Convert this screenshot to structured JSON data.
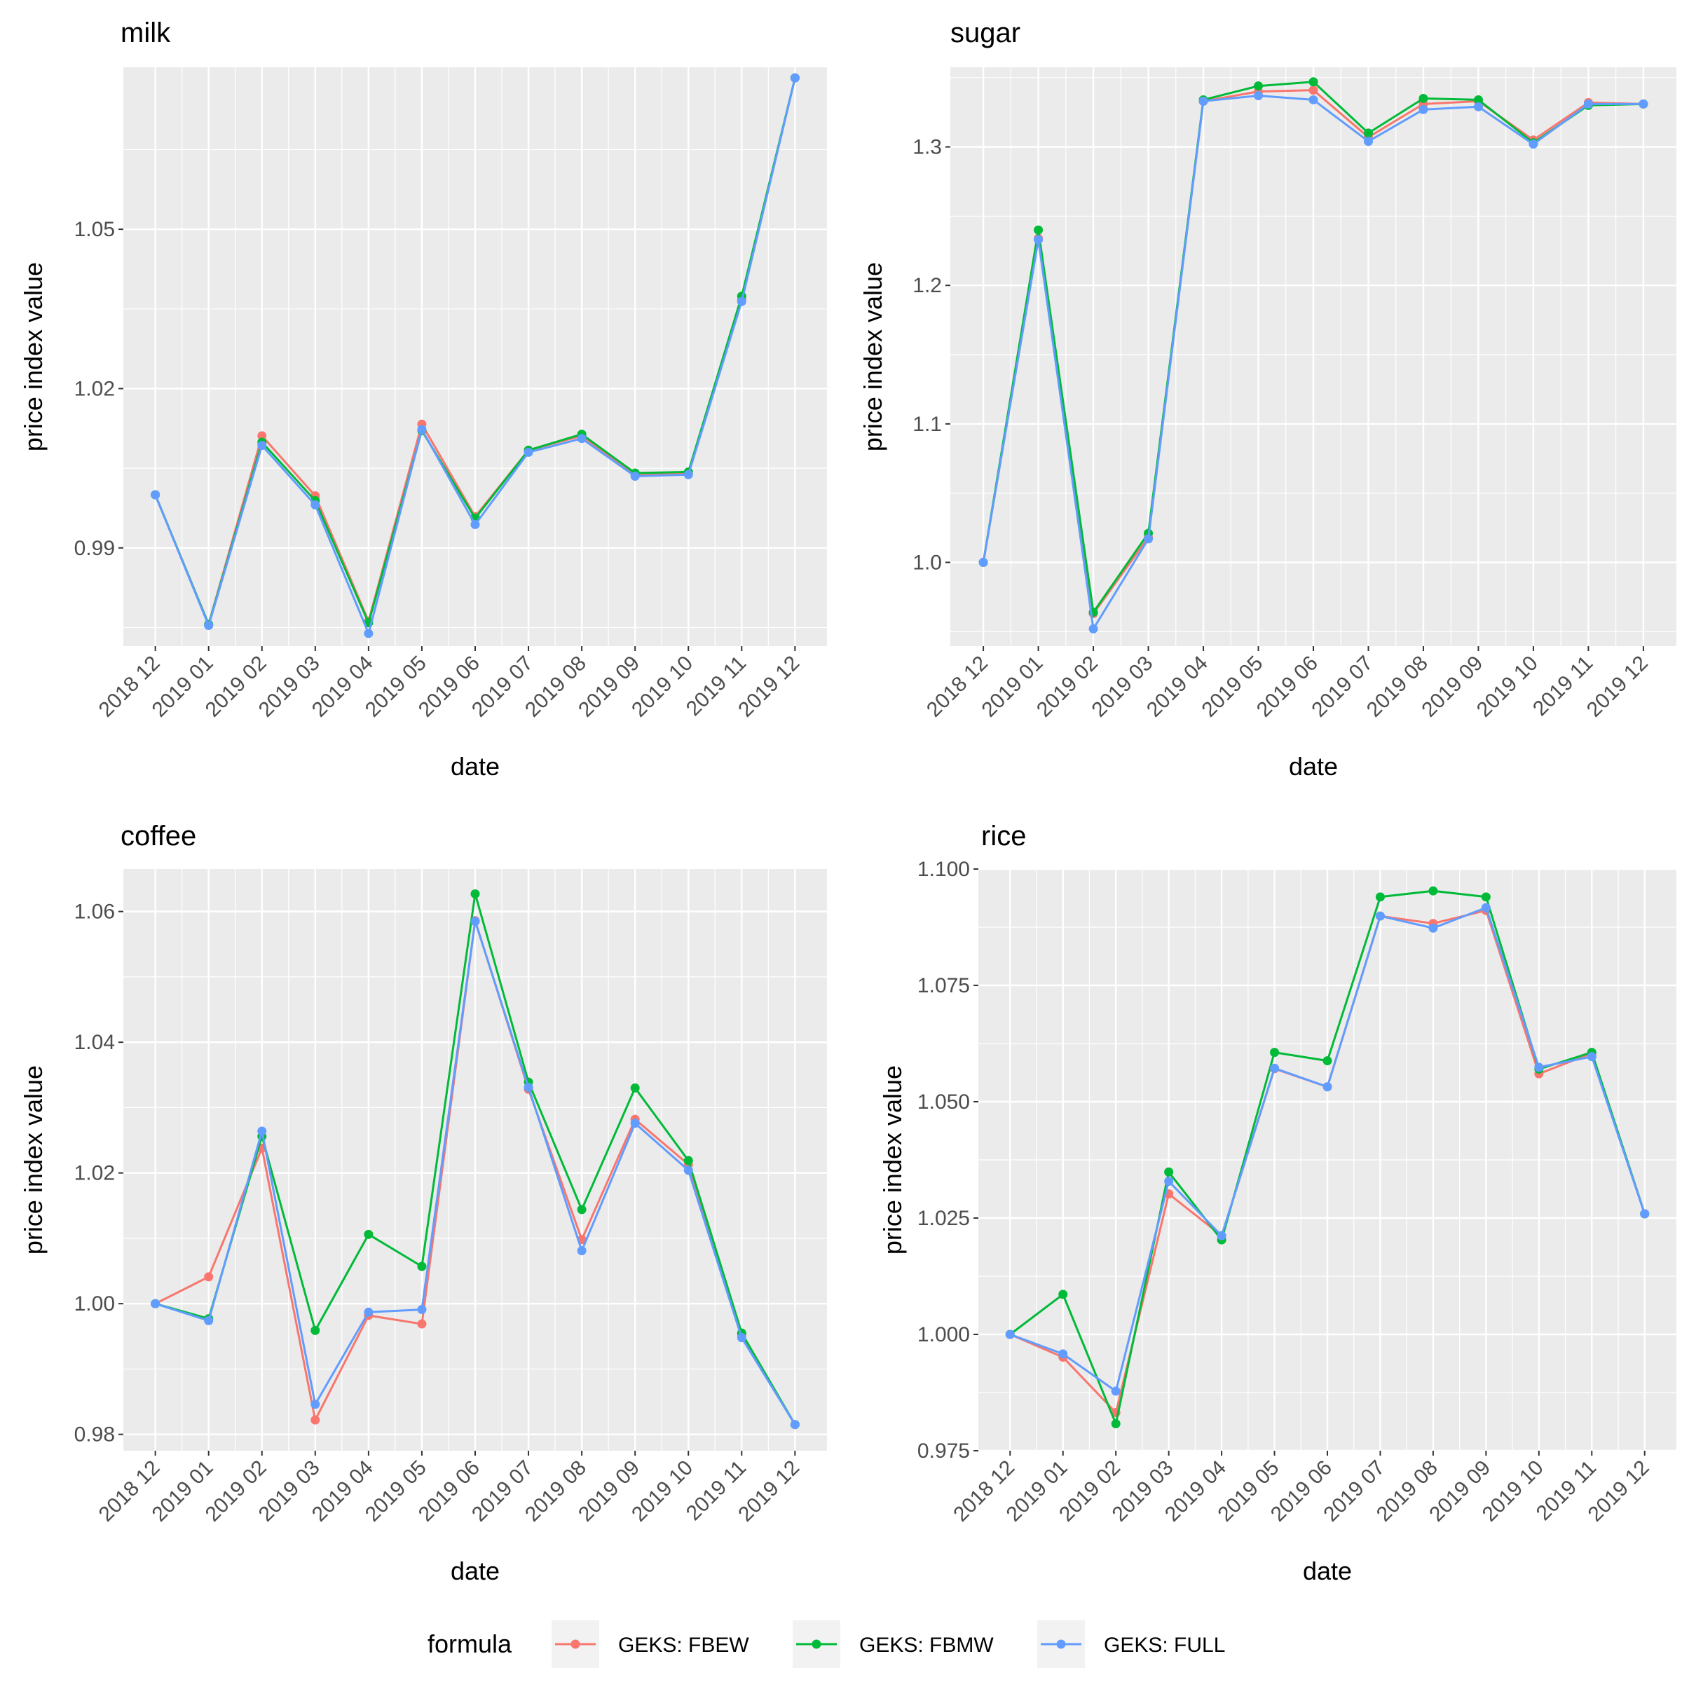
{
  "chart_data": [
    {
      "type": "line",
      "title": "milk",
      "xlabel": "date",
      "ylabel": "price index value",
      "ylim": [
        0.9715,
        1.0805
      ],
      "yticks": [
        0.99,
        1.02,
        1.05
      ],
      "yticklabels": [
        "0.99",
        "1.02",
        "1.05"
      ],
      "categories": [
        "2018 12",
        "2019 01",
        "2019 02",
        "2019 03",
        "2019 04",
        "2019 05",
        "2019 06",
        "2019 07",
        "2019 08",
        "2019 09",
        "2019 10",
        "2019 11",
        "2019 12"
      ],
      "series": [
        {
          "name": "GEKS: FBEW",
          "values": [
            1.0,
            0.9756,
            1.0111,
            0.9998,
            0.9762,
            1.0133,
            0.9959,
            1.0084,
            1.0111,
            1.0039,
            1.004,
            1.0367,
            1.0785
          ]
        },
        {
          "name": "GEKS: FBMW",
          "values": [
            1.0,
            0.9756,
            1.0099,
            0.9989,
            0.9759,
            1.0121,
            0.9956,
            1.0084,
            1.0114,
            1.0041,
            1.0043,
            1.0374,
            1.0785
          ]
        },
        {
          "name": "GEKS: FULL",
          "values": [
            1.0,
            0.9754,
            1.0093,
            0.9981,
            0.9739,
            1.0123,
            0.9944,
            1.008,
            1.0106,
            1.0035,
            1.0038,
            1.0364,
            1.0785
          ]
        }
      ]
    },
    {
      "type": "line",
      "title": "sugar",
      "xlabel": "date",
      "ylabel": "price index value",
      "ylim": [
        0.9395,
        1.3575
      ],
      "yticks": [
        1.0,
        1.1,
        1.2,
        1.3
      ],
      "yticklabels": [
        "1.0",
        "1.1",
        "1.2",
        "1.3"
      ],
      "categories": [
        "2018 12",
        "2019 01",
        "2019 02",
        "2019 03",
        "2019 04",
        "2019 05",
        "2019 06",
        "2019 07",
        "2019 08",
        "2019 09",
        "2019 10",
        "2019 11",
        "2019 12"
      ],
      "series": [
        {
          "name": "GEKS: FBEW",
          "values": [
            1.0,
            1.234,
            0.963,
            1.018,
            1.333,
            1.34,
            1.341,
            1.307,
            1.331,
            1.333,
            1.305,
            1.332,
            1.331
          ]
        },
        {
          "name": "GEKS: FBMW",
          "values": [
            1.0,
            1.24,
            0.964,
            1.021,
            1.334,
            1.344,
            1.347,
            1.31,
            1.335,
            1.334,
            1.303,
            1.33,
            1.331
          ]
        },
        {
          "name": "GEKS: FULL",
          "values": [
            1.0,
            1.233,
            0.952,
            1.017,
            1.333,
            1.337,
            1.334,
            1.304,
            1.327,
            1.329,
            1.302,
            1.331,
            1.331
          ]
        }
      ]
    },
    {
      "type": "line",
      "title": "coffee",
      "xlabel": "date",
      "ylabel": "price index value",
      "ylim": [
        0.9775,
        1.0665
      ],
      "yticks": [
        0.98,
        1.0,
        1.02,
        1.04,
        1.06
      ],
      "yticklabels": [
        "0.98",
        "1.00",
        "1.02",
        "1.04",
        "1.06"
      ],
      "categories": [
        "2018 12",
        "2019 01",
        "2019 02",
        "2019 03",
        "2019 04",
        "2019 05",
        "2019 06",
        "2019 07",
        "2019 08",
        "2019 09",
        "2019 10",
        "2019 11",
        "2019 12"
      ],
      "series": [
        {
          "name": "GEKS: FBEW",
          "values": [
            1.0,
            1.0041,
            1.0238,
            0.9822,
            0.9982,
            0.9969,
            1.0586,
            1.0328,
            1.0098,
            1.0282,
            1.0213,
            0.9953,
            0.9815
          ]
        },
        {
          "name": "GEKS: FBMW",
          "values": [
            1.0,
            0.9977,
            1.0256,
            0.9959,
            1.0106,
            1.0057,
            1.0627,
            1.0339,
            1.0144,
            1.033,
            1.0219,
            0.9955,
            0.9815
          ]
        },
        {
          "name": "GEKS: FULL",
          "values": [
            1.0,
            0.9974,
            1.0264,
            0.9846,
            0.9987,
            0.9991,
            1.0585,
            1.0331,
            1.0081,
            1.0276,
            1.0204,
            0.9948,
            0.9815
          ]
        }
      ]
    },
    {
      "type": "line",
      "title": "rice",
      "xlabel": "date",
      "ylabel": "price index value",
      "ylim": [
        0.975,
        1.1
      ],
      "yticks": [
        0.975,
        1.0,
        1.025,
        1.05,
        1.075,
        1.1
      ],
      "yticklabels": [
        "0.975",
        "1.000",
        "1.025",
        "1.050",
        "1.075",
        "1.100"
      ],
      "categories": [
        "2018 12",
        "2019 01",
        "2019 02",
        "2019 03",
        "2019 04",
        "2019 05",
        "2019 06",
        "2019 07",
        "2019 08",
        "2019 09",
        "2019 10",
        "2019 11",
        "2019 12"
      ],
      "series": [
        {
          "name": "GEKS: FBEW",
          "values": [
            1.0,
            0.9951,
            0.9832,
            1.0302,
            1.0212,
            1.0571,
            1.0532,
            1.0899,
            1.0883,
            1.0911,
            1.056,
            1.0604,
            1.0259
          ]
        },
        {
          "name": "GEKS: FBMW",
          "values": [
            1.0,
            1.0086,
            0.9808,
            1.0349,
            1.0203,
            1.0606,
            1.0588,
            1.094,
            1.0953,
            1.094,
            1.057,
            1.0606,
            1.0259
          ]
        },
        {
          "name": "GEKS: FULL",
          "values": [
            1.0,
            0.9958,
            0.9878,
            1.0329,
            1.0212,
            1.0572,
            1.0532,
            1.0899,
            1.0873,
            1.0917,
            1.0574,
            1.0597,
            1.0259
          ]
        }
      ]
    }
  ],
  "legend": {
    "title": "formula",
    "items": [
      {
        "label": "GEKS: FBEW",
        "color": "#F8766D"
      },
      {
        "label": "GEKS: FBMW",
        "color": "#00BA38"
      },
      {
        "label": "GEKS: FULL",
        "color": "#619CFF"
      }
    ]
  }
}
